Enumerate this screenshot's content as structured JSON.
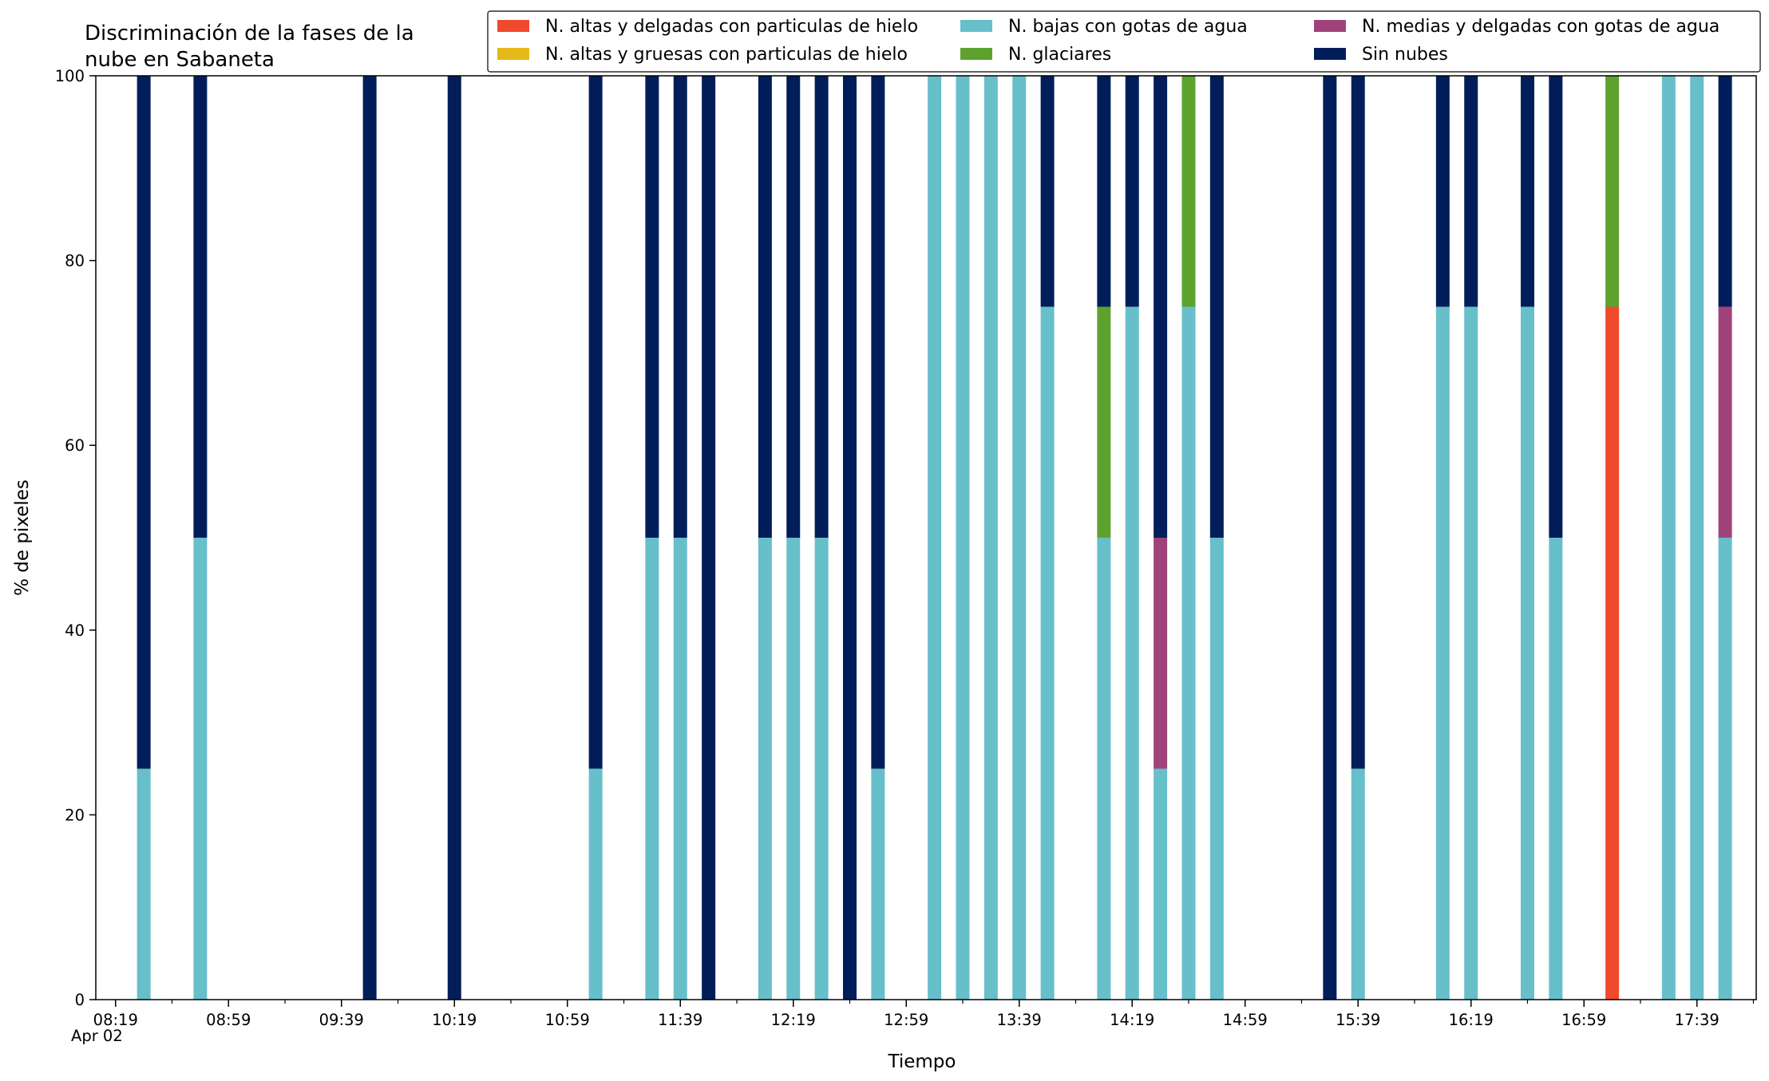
{
  "chart_data": {
    "type": "bar",
    "stacked": true,
    "title_lines": [
      "Discriminación de la fases de la",
      "nube en Sabaneta"
    ],
    "xlabel": "Tiempo",
    "ylabel": "% de pixeles",
    "ylim": [
      0,
      100
    ],
    "yticks": [
      0,
      20,
      40,
      60,
      80,
      100
    ],
    "date_label": "Apr 02",
    "xlim_time": [
      "08:12",
      "18:00"
    ],
    "xticks_major": [
      "08:19",
      "08:59",
      "09:39",
      "10:19",
      "10:59",
      "11:39",
      "12:19",
      "12:59",
      "13:39",
      "14:19",
      "14:59",
      "15:39",
      "16:19",
      "16:59",
      "17:39"
    ],
    "xticks_minor_interval_min": 20,
    "grid": false,
    "legend_position": "top-right",
    "legend_columns": 3,
    "series": [
      {
        "key": "altas_delgadas",
        "name": "N. altas y delgadas con particulas de hielo",
        "color": "#f04a2c"
      },
      {
        "key": "altas_gruesas",
        "name": "N. altas y gruesas con particulas de hielo",
        "color": "#e5b919"
      },
      {
        "key": "bajas_agua",
        "name": "N. bajas con gotas de agua",
        "color": "#67bfca"
      },
      {
        "key": "glaciares",
        "name": "N. glaciares",
        "color": "#5ea22e"
      },
      {
        "key": "medias_agua",
        "name": "N. medias y delgadas con gotas de agua",
        "color": "#a0437b"
      },
      {
        "key": "sin_nubes",
        "name": "Sin nubes",
        "color": "#011e5b"
      }
    ],
    "bars": [
      {
        "time": "08:29",
        "altas_delgadas": 0,
        "altas_gruesas": 0,
        "bajas_agua": 25,
        "glaciares": 0,
        "medias_agua": 0,
        "sin_nubes": 75
      },
      {
        "time": "08:49",
        "altas_delgadas": 0,
        "altas_gruesas": 0,
        "bajas_agua": 50,
        "glaciares": 0,
        "medias_agua": 0,
        "sin_nubes": 50
      },
      {
        "time": "09:49",
        "altas_delgadas": 0,
        "altas_gruesas": 0,
        "bajas_agua": 0,
        "glaciares": 0,
        "medias_agua": 0,
        "sin_nubes": 100
      },
      {
        "time": "10:19",
        "altas_delgadas": 0,
        "altas_gruesas": 0,
        "bajas_agua": 0,
        "glaciares": 0,
        "medias_agua": 0,
        "sin_nubes": 100
      },
      {
        "time": "11:09",
        "altas_delgadas": 0,
        "altas_gruesas": 0,
        "bajas_agua": 25,
        "glaciares": 0,
        "medias_agua": 0,
        "sin_nubes": 75
      },
      {
        "time": "11:29",
        "altas_delgadas": 0,
        "altas_gruesas": 0,
        "bajas_agua": 50,
        "glaciares": 0,
        "medias_agua": 0,
        "sin_nubes": 50
      },
      {
        "time": "11:39",
        "altas_delgadas": 0,
        "altas_gruesas": 0,
        "bajas_agua": 50,
        "glaciares": 0,
        "medias_agua": 0,
        "sin_nubes": 50
      },
      {
        "time": "11:49",
        "altas_delgadas": 0,
        "altas_gruesas": 0,
        "bajas_agua": 0,
        "glaciares": 0,
        "medias_agua": 0,
        "sin_nubes": 100
      },
      {
        "time": "12:09",
        "altas_delgadas": 0,
        "altas_gruesas": 0,
        "bajas_agua": 50,
        "glaciares": 0,
        "medias_agua": 0,
        "sin_nubes": 50
      },
      {
        "time": "12:19",
        "altas_delgadas": 0,
        "altas_gruesas": 0,
        "bajas_agua": 50,
        "glaciares": 0,
        "medias_agua": 0,
        "sin_nubes": 50
      },
      {
        "time": "12:29",
        "altas_delgadas": 0,
        "altas_gruesas": 0,
        "bajas_agua": 50,
        "glaciares": 0,
        "medias_agua": 0,
        "sin_nubes": 50
      },
      {
        "time": "12:39",
        "altas_delgadas": 0,
        "altas_gruesas": 0,
        "bajas_agua": 0,
        "glaciares": 0,
        "medias_agua": 0,
        "sin_nubes": 100
      },
      {
        "time": "12:49",
        "altas_delgadas": 0,
        "altas_gruesas": 0,
        "bajas_agua": 25,
        "glaciares": 0,
        "medias_agua": 0,
        "sin_nubes": 75
      },
      {
        "time": "13:09",
        "altas_delgadas": 0,
        "altas_gruesas": 0,
        "bajas_agua": 100,
        "glaciares": 0,
        "medias_agua": 0,
        "sin_nubes": 0
      },
      {
        "time": "13:19",
        "altas_delgadas": 0,
        "altas_gruesas": 0,
        "bajas_agua": 100,
        "glaciares": 0,
        "medias_agua": 0,
        "sin_nubes": 0
      },
      {
        "time": "13:29",
        "altas_delgadas": 0,
        "altas_gruesas": 0,
        "bajas_agua": 100,
        "glaciares": 0,
        "medias_agua": 0,
        "sin_nubes": 0
      },
      {
        "time": "13:39",
        "altas_delgadas": 0,
        "altas_gruesas": 0,
        "bajas_agua": 100,
        "glaciares": 0,
        "medias_agua": 0,
        "sin_nubes": 0
      },
      {
        "time": "13:49",
        "altas_delgadas": 0,
        "altas_gruesas": 0,
        "bajas_agua": 75,
        "glaciares": 0,
        "medias_agua": 0,
        "sin_nubes": 25
      },
      {
        "time": "14:09",
        "altas_delgadas": 0,
        "altas_gruesas": 0,
        "bajas_agua": 50,
        "glaciares": 25,
        "medias_agua": 0,
        "sin_nubes": 25
      },
      {
        "time": "14:19",
        "altas_delgadas": 0,
        "altas_gruesas": 0,
        "bajas_agua": 75,
        "glaciares": 0,
        "medias_agua": 0,
        "sin_nubes": 25
      },
      {
        "time": "14:29",
        "altas_delgadas": 0,
        "altas_gruesas": 0,
        "bajas_agua": 25,
        "glaciares": 0,
        "medias_agua": 25,
        "sin_nubes": 50
      },
      {
        "time": "14:39",
        "altas_delgadas": 0,
        "altas_gruesas": 0,
        "bajas_agua": 75,
        "glaciares": 25,
        "medias_agua": 0,
        "sin_nubes": 0
      },
      {
        "time": "14:49",
        "altas_delgadas": 0,
        "altas_gruesas": 0,
        "bajas_agua": 50,
        "glaciares": 0,
        "medias_agua": 0,
        "sin_nubes": 50
      },
      {
        "time": "15:29",
        "altas_delgadas": 0,
        "altas_gruesas": 0,
        "bajas_agua": 0,
        "glaciares": 0,
        "medias_agua": 0,
        "sin_nubes": 100
      },
      {
        "time": "15:39",
        "altas_delgadas": 0,
        "altas_gruesas": 0,
        "bajas_agua": 25,
        "glaciares": 0,
        "medias_agua": 0,
        "sin_nubes": 75
      },
      {
        "time": "16:09",
        "altas_delgadas": 0,
        "altas_gruesas": 0,
        "bajas_agua": 75,
        "glaciares": 0,
        "medias_agua": 0,
        "sin_nubes": 25
      },
      {
        "time": "16:19",
        "altas_delgadas": 0,
        "altas_gruesas": 0,
        "bajas_agua": 75,
        "glaciares": 0,
        "medias_agua": 0,
        "sin_nubes": 25
      },
      {
        "time": "16:39",
        "altas_delgadas": 0,
        "altas_gruesas": 0,
        "bajas_agua": 75,
        "glaciares": 0,
        "medias_agua": 0,
        "sin_nubes": 25
      },
      {
        "time": "16:49",
        "altas_delgadas": 0,
        "altas_gruesas": 0,
        "bajas_agua": 50,
        "glaciares": 0,
        "medias_agua": 0,
        "sin_nubes": 50
      },
      {
        "time": "17:09",
        "altas_delgadas": 75,
        "altas_gruesas": 0,
        "bajas_agua": 0,
        "glaciares": 25,
        "medias_agua": 0,
        "sin_nubes": 0
      },
      {
        "time": "17:29",
        "altas_delgadas": 0,
        "altas_gruesas": 0,
        "bajas_agua": 100,
        "glaciares": 0,
        "medias_agua": 0,
        "sin_nubes": 0
      },
      {
        "time": "17:39",
        "altas_delgadas": 0,
        "altas_gruesas": 0,
        "bajas_agua": 100,
        "glaciares": 0,
        "medias_agua": 0,
        "sin_nubes": 0
      },
      {
        "time": "17:49",
        "altas_delgadas": 0,
        "altas_gruesas": 0,
        "bajas_agua": 50,
        "glaciares": 0,
        "medias_agua": 25,
        "sin_nubes": 25
      }
    ]
  }
}
